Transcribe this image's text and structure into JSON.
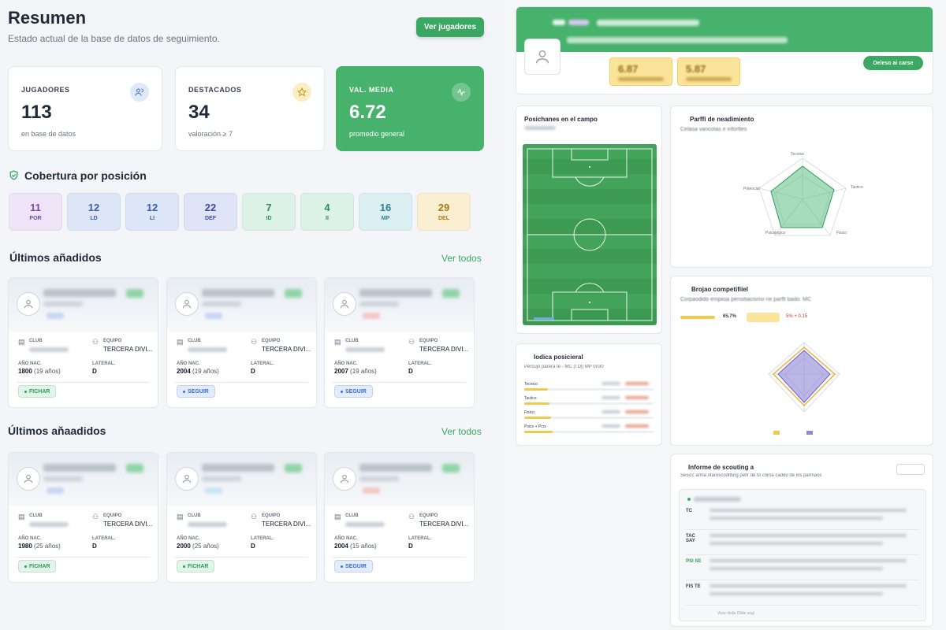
{
  "header": {
    "title": "Resumen",
    "subtitle": "Estado actual de la base de datos de seguimiento.",
    "players_button": "Ver jugadores"
  },
  "stats": [
    {
      "label": "JUGADORES",
      "value": "113",
      "sub": "en base de datos",
      "icon": "users-icon"
    },
    {
      "label": "DESTACADOS",
      "value": "34",
      "sub": "valoración ≥ 7",
      "icon": "star-icon"
    },
    {
      "label": "VAL. MEDIA",
      "value": "6.72",
      "sub": "promedio general",
      "icon": "activity-icon"
    }
  ],
  "coverage": {
    "title": "Cobertura por posición",
    "positions": [
      {
        "count": "11",
        "code": "POR",
        "bg": "#efe3f7",
        "fg": "#7b4aa8"
      },
      {
        "count": "12",
        "code": "LD",
        "bg": "#dde6f7",
        "fg": "#3a5fa8"
      },
      {
        "count": "12",
        "code": "LI",
        "bg": "#dde6f7",
        "fg": "#3a5fa8"
      },
      {
        "count": "22",
        "code": "DEF",
        "bg": "#dfe3f6",
        "fg": "#3e4fa0"
      },
      {
        "count": "7",
        "code": "ID",
        "bg": "#ddf2e6",
        "fg": "#2f8a54"
      },
      {
        "count": "4",
        "code": "II",
        "bg": "#ddf2e6",
        "fg": "#2f8a54"
      },
      {
        "count": "16",
        "code": "MP",
        "bg": "#dbeff3",
        "fg": "#2f7f8f"
      },
      {
        "count": "29",
        "code": "DEL",
        "bg": "#faefd0",
        "fg": "#a67a1a"
      }
    ]
  },
  "sections": [
    {
      "title": "Últimos añadidos",
      "link": "Ver todos"
    },
    {
      "title": "Últimos aňaadidos",
      "link": "Ver todos"
    }
  ],
  "labels": {
    "club": "CLUB",
    "team": "EQUIPO",
    "birth": "AÑO NAC.",
    "side": "LATERAL."
  },
  "cards_row1": [
    {
      "team": "TERCERA DIVI...",
      "birth": "1800",
      "age": "(19 años)",
      "side": "D",
      "action": "FICHAR",
      "action_type": "f",
      "rating_color": "#8fd3a6",
      "chip_color": "#c8d7f5"
    },
    {
      "team": "TERCERA DIVI...",
      "birth": "2004",
      "age": "(19 años)",
      "side": "D",
      "action": "SEGUIR",
      "action_type": "s",
      "rating_color": "#8fd3a6",
      "chip_color": "#c8d7f5"
    },
    {
      "team": "TERCERA DIVI...",
      "birth": "2007",
      "age": "(19 años)",
      "side": "D",
      "action": "SEGUIR",
      "action_type": "s",
      "rating_color": "#8fd3a6",
      "chip_color": "#f3c7c7"
    }
  ],
  "cards_row2": [
    {
      "team": "TERCERA DIVI...",
      "birth": "1980",
      "age": "(25 años)",
      "side": "D",
      "action": "FICHAR",
      "action_type": "f",
      "rating_color": "#8fd3a6",
      "chip_color": "#c8d7f5"
    },
    {
      "team": "TERCERA DIVI...",
      "birth": "2000",
      "age": "(25 años)",
      "side": "D",
      "action": "FICHAR",
      "action_type": "f",
      "rating_color": "#8fd3a6",
      "chip_color": "#c8e4f5"
    },
    {
      "team": "TERCERA DIVI...",
      "birth": "2004",
      "age": "(15 años)",
      "side": "D",
      "action": "SEGUIR",
      "action_type": "s",
      "rating_color": "#8fd3a6",
      "chip_color": "#f3c7c7"
    }
  ],
  "detail": {
    "button": "Deleso ai carse",
    "score1": "6.87",
    "score2": "5.87",
    "field_title": "Posichanes en el campo",
    "radar_title": "Parffi de neadimiento",
    "radar_sub": "Celasa vancotas e inforttes",
    "radar_axes": [
      "Tecnico",
      "Tactico",
      "Fisico",
      "Psicologico",
      "Potencial"
    ],
    "compare_title": "Brojao competifiiel",
    "compare_sub": "Corpaodido empiisa pensitiacismo ne parffi bado: MC",
    "compare_value": "65.7%",
    "compare_delta": "5% + 0.15",
    "idx_title": "Iodica posicieral",
    "idx_sub": "Percujo parera te - MC |TD|| MP 0030",
    "idx_rows": [
      "Tecnico",
      "Tactico",
      "Fisico",
      "Psico + Pcrs"
    ],
    "report_title": "Informe de scouting a",
    "report_sub": "Sesicc arma otaroscoditting pefir de to corna caddo de los parmaos",
    "report_rows": [
      "TC",
      "TAC SAY",
      "PSI SE",
      "FIS TE"
    ],
    "report_footer": "View deda Olide sogi"
  }
}
